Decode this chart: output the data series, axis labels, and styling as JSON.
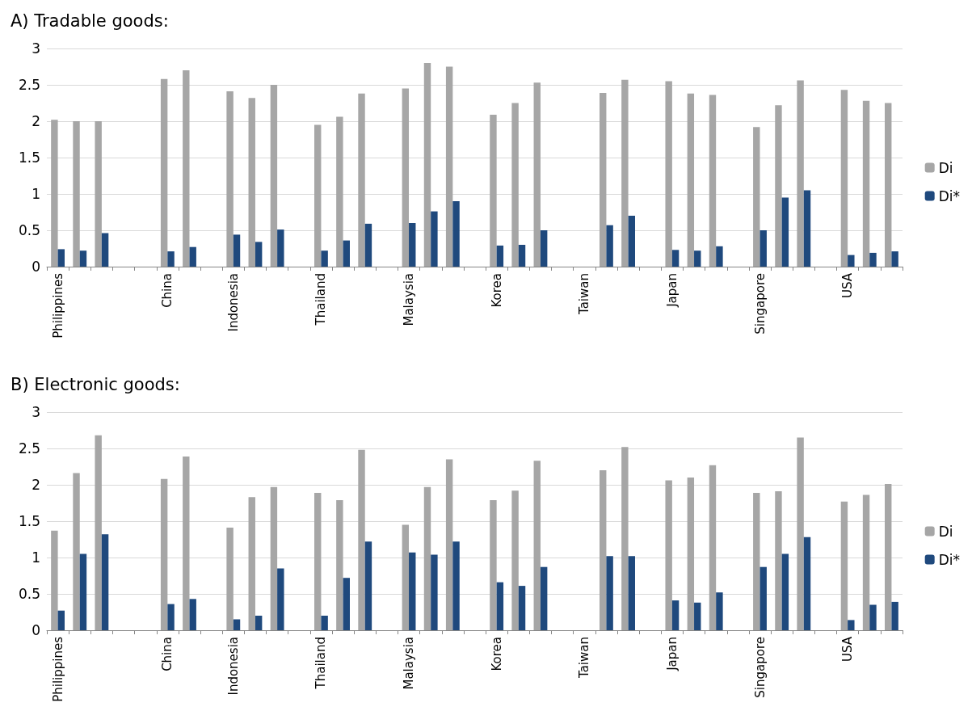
{
  "chart_data": [
    {
      "type": "bar",
      "title": "A) Tradable goods:",
      "categories": [
        "Philippines",
        null,
        null,
        null,
        null,
        "China",
        null,
        null,
        "Indonesia",
        null,
        null,
        null,
        "Thailand",
        null,
        null,
        null,
        "Malaysia",
        null,
        null,
        null,
        "Korea",
        null,
        null,
        null,
        "Taiwan",
        null,
        null,
        null,
        "Japan",
        null,
        null,
        null,
        "Singapore",
        null,
        null,
        null,
        "USA",
        null,
        null
      ],
      "series": [
        {
          "name": "Di",
          "color": "#a6a6a6",
          "values": [
            2.02,
            2.0,
            2.0,
            null,
            null,
            2.58,
            2.7,
            null,
            2.41,
            2.32,
            2.5,
            null,
            1.95,
            2.06,
            2.38,
            null,
            2.45,
            2.8,
            2.75,
            null,
            2.09,
            2.25,
            2.53,
            null,
            null,
            2.39,
            2.57,
            null,
            2.55,
            2.38,
            2.36,
            null,
            1.92,
            2.22,
            2.56,
            null,
            2.43,
            2.28,
            2.25
          ]
        },
        {
          "name": "Di*",
          "color": "#1f497d",
          "values": [
            0.24,
            0.22,
            0.46,
            null,
            null,
            0.21,
            0.27,
            null,
            0.44,
            0.34,
            0.51,
            null,
            0.22,
            0.36,
            0.59,
            null,
            0.6,
            0.76,
            0.9,
            null,
            0.29,
            0.3,
            0.5,
            null,
            null,
            0.57,
            0.7,
            null,
            0.23,
            0.22,
            0.28,
            null,
            0.5,
            0.95,
            1.05,
            null,
            0.16,
            0.19,
            0.21
          ]
        }
      ],
      "ylim": [
        0,
        3
      ],
      "yticks": [
        0,
        0.5,
        1,
        1.5,
        2,
        2.5,
        3
      ],
      "grid": "y",
      "legend": "right"
    },
    {
      "type": "bar",
      "title": "B) Electronic goods:",
      "categories": [
        "Philippines",
        null,
        null,
        null,
        null,
        "China",
        null,
        null,
        "Indonesia",
        null,
        null,
        null,
        "Thailand",
        null,
        null,
        null,
        "Malaysia",
        null,
        null,
        null,
        "Korea",
        null,
        null,
        null,
        "Taiwan",
        null,
        null,
        null,
        "Japan",
        null,
        null,
        null,
        "Singapore",
        null,
        null,
        null,
        "USA",
        null,
        null
      ],
      "series": [
        {
          "name": "Di",
          "color": "#a6a6a6",
          "values": [
            1.37,
            2.16,
            2.68,
            null,
            null,
            2.08,
            2.39,
            null,
            1.41,
            1.83,
            1.97,
            null,
            1.89,
            1.79,
            2.48,
            null,
            1.45,
            1.97,
            2.35,
            null,
            1.79,
            1.92,
            2.33,
            null,
            null,
            2.2,
            2.52,
            null,
            2.06,
            2.1,
            2.27,
            null,
            1.89,
            1.91,
            2.65,
            null,
            1.77,
            1.86,
            2.01
          ]
        },
        {
          "name": "Di*",
          "color": "#1f497d",
          "values": [
            0.27,
            1.05,
            1.32,
            null,
            null,
            0.36,
            0.43,
            null,
            0.15,
            0.2,
            0.85,
            null,
            0.2,
            0.72,
            1.22,
            null,
            1.07,
            1.04,
            1.22,
            null,
            0.66,
            0.61,
            0.87,
            null,
            null,
            1.02,
            1.02,
            null,
            0.41,
            0.38,
            0.52,
            null,
            0.87,
            1.05,
            1.28,
            null,
            0.14,
            0.35,
            0.39
          ]
        }
      ],
      "ylim": [
        0,
        3
      ],
      "yticks": [
        0,
        0.5,
        1,
        1.5,
        2,
        2.5,
        3
      ],
      "grid": "y",
      "legend": "right"
    }
  ]
}
